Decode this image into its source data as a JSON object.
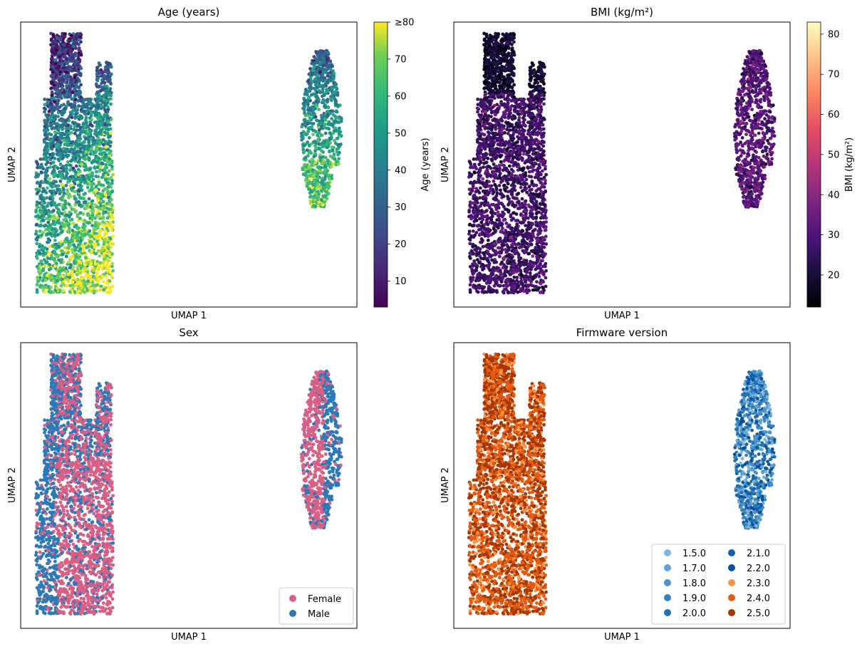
{
  "chart_data": [
    {
      "type": "scatter",
      "title": "Age (years)",
      "xlabel": "UMAP 1",
      "ylabel": "UMAP 2",
      "xticks": false,
      "yticks": false,
      "xlim": [
        0,
        10
      ],
      "ylim": [
        0,
        10
      ],
      "color_by": "Age (years)",
      "colormap": "viridis",
      "colorbar": {
        "label": "Age (years)",
        "range": [
          3,
          80
        ],
        "ticks": [
          10,
          20,
          30,
          40,
          50,
          60,
          70,
          80
        ],
        "tick_labels": [
          "10",
          "20",
          "30",
          "40",
          "50",
          "60",
          "70",
          "≥80"
        ]
      },
      "clusters": [
        {
          "name": "left",
          "x_range": [
            0.4,
            2.8
          ],
          "y_range": [
            0.5,
            9.6
          ]
        },
        {
          "name": "right",
          "x_range": [
            8.4,
            9.6
          ],
          "y_range": [
            3.5,
            9.0
          ]
        }
      ]
    },
    {
      "type": "scatter",
      "title": "BMI (kg/m²)",
      "xlabel": "UMAP 1",
      "ylabel": "UMAP 2",
      "xticks": false,
      "yticks": false,
      "xlim": [
        0,
        10
      ],
      "ylim": [
        0,
        10
      ],
      "color_by": "BMI (kg/m²)",
      "colormap": "magma",
      "colorbar": {
        "label": "BMI (kg/m²)",
        "range": [
          12,
          83
        ],
        "ticks": [
          20,
          30,
          40,
          50,
          60,
          70,
          80
        ],
        "tick_labels": [
          "20",
          "30",
          "40",
          "50",
          "60",
          "70",
          "80"
        ]
      }
    },
    {
      "type": "scatter",
      "title": "Sex",
      "xlabel": "UMAP 1",
      "ylabel": "UMAP 2",
      "xticks": false,
      "yticks": false,
      "xlim": [
        0,
        10
      ],
      "ylim": [
        0,
        10
      ],
      "legend": {
        "placement": "lower-right",
        "entries": [
          {
            "label": "Female",
            "color": "#d95f85"
          },
          {
            "label": "Male",
            "color": "#2a7ab9"
          }
        ]
      }
    },
    {
      "type": "scatter",
      "title": "Firmware version",
      "xlabel": "UMAP 1",
      "ylabel": "UMAP 2",
      "xticks": false,
      "yticks": false,
      "xlim": [
        0,
        10
      ],
      "ylim": [
        0,
        10
      ],
      "legend": {
        "placement": "lower-right",
        "columns": 2,
        "entries": [
          {
            "label": "1.5.0",
            "color": "#7fb5da"
          },
          {
            "label": "1.7.0",
            "color": "#5fa3d3"
          },
          {
            "label": "1.8.0",
            "color": "#4a93cb"
          },
          {
            "label": "1.9.0",
            "color": "#3582c1"
          },
          {
            "label": "2.0.0",
            "color": "#2171b5"
          },
          {
            "label": "2.1.0",
            "color": "#1260a7"
          },
          {
            "label": "2.2.0",
            "color": "#08519c"
          },
          {
            "label": "2.3.0",
            "color": "#fd9243"
          },
          {
            "label": "2.4.0",
            "color": "#e55c10"
          },
          {
            "label": "2.5.0",
            "color": "#a63603"
          }
        ]
      }
    }
  ]
}
